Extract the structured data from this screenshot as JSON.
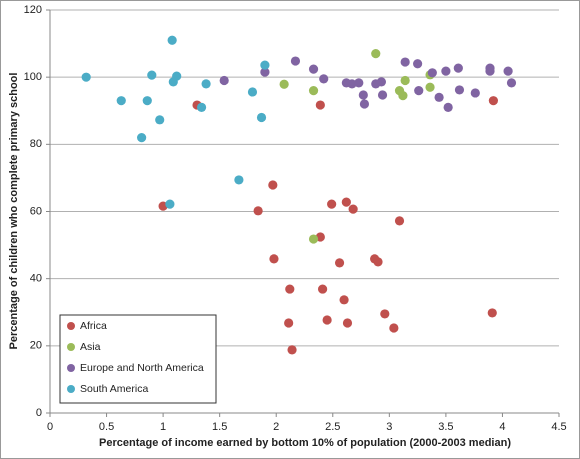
{
  "chart_data": {
    "type": "scatter",
    "x_label": "Percentage of income earned by bottom 10% of population (2000-2003 median)",
    "y_label": "Percentage of children who complete primary school",
    "xlim": [
      0,
      4.5
    ],
    "ylim": [
      0,
      120
    ],
    "xticks": [
      0,
      0.5,
      1,
      1.5,
      2,
      2.5,
      3,
      3.5,
      4,
      4.5
    ],
    "yticks": [
      0,
      20,
      40,
      60,
      80,
      100,
      120
    ],
    "grid": true,
    "legend_position": "lower-left",
    "series": [
      {
        "name": "Africa",
        "color": "#c0504d",
        "x": [
          1.0,
          1.3,
          1.97,
          1.84,
          1.98,
          2.12,
          2.11,
          2.14,
          2.39,
          2.39,
          2.41,
          2.45,
          2.49,
          2.56,
          2.62,
          2.68,
          2.6,
          2.63,
          2.87,
          2.9,
          2.96,
          3.04,
          3.09,
          3.92,
          3.91
        ],
        "values": [
          61.6,
          91.7,
          67.9,
          60.2,
          45.9,
          36.9,
          26.8,
          18.8,
          91.7,
          52.4,
          36.9,
          27.7,
          62.2,
          44.7,
          62.8,
          60.7,
          33.7,
          26.8,
          45.9,
          45.0,
          29.5,
          25.3,
          57.2,
          93,
          29.8
        ]
      },
      {
        "name": "Asia",
        "color": "#9bbb59",
        "x": [
          2.07,
          2.33,
          2.88,
          3.09,
          3.12,
          3.14,
          3.36,
          3.36,
          2.33
        ],
        "values": [
          97.9,
          96,
          107,
          96,
          94.5,
          99,
          100.7,
          97,
          51.8
        ]
      },
      {
        "name": "Europe and North America",
        "color": "#8064a2",
        "x": [
          1.54,
          1.9,
          2.17,
          2.33,
          2.42,
          2.62,
          2.67,
          2.73,
          2.77,
          2.78,
          2.88,
          2.93,
          2.94,
          3.14,
          3.25,
          3.26,
          3.38,
          3.44,
          3.52,
          3.5,
          3.61,
          3.62,
          3.76,
          3.89,
          3.89,
          4.05,
          4.08
        ],
        "values": [
          99,
          101.5,
          104.8,
          102.4,
          99.5,
          98.3,
          98,
          98.3,
          94.7,
          92,
          98,
          98.6,
          94.7,
          104.5,
          104,
          96,
          101.3,
          94,
          91,
          101.8,
          102.7,
          96.2,
          95.3,
          102.7,
          101.8,
          101.8,
          98.3
        ]
      },
      {
        "name": "South America",
        "color": "#4bacc6",
        "x": [
          0.32,
          0.63,
          0.81,
          0.86,
          0.9,
          0.97,
          1.08,
          1.09,
          1.12,
          1.34,
          1.38,
          1.79,
          1.87,
          1.9,
          1.67,
          1.06
        ],
        "values": [
          100,
          93,
          82,
          93,
          100.6,
          87.3,
          111,
          98.6,
          100.3,
          91,
          98,
          95.6,
          88,
          103.6,
          69.4,
          62.2
        ]
      }
    ]
  }
}
